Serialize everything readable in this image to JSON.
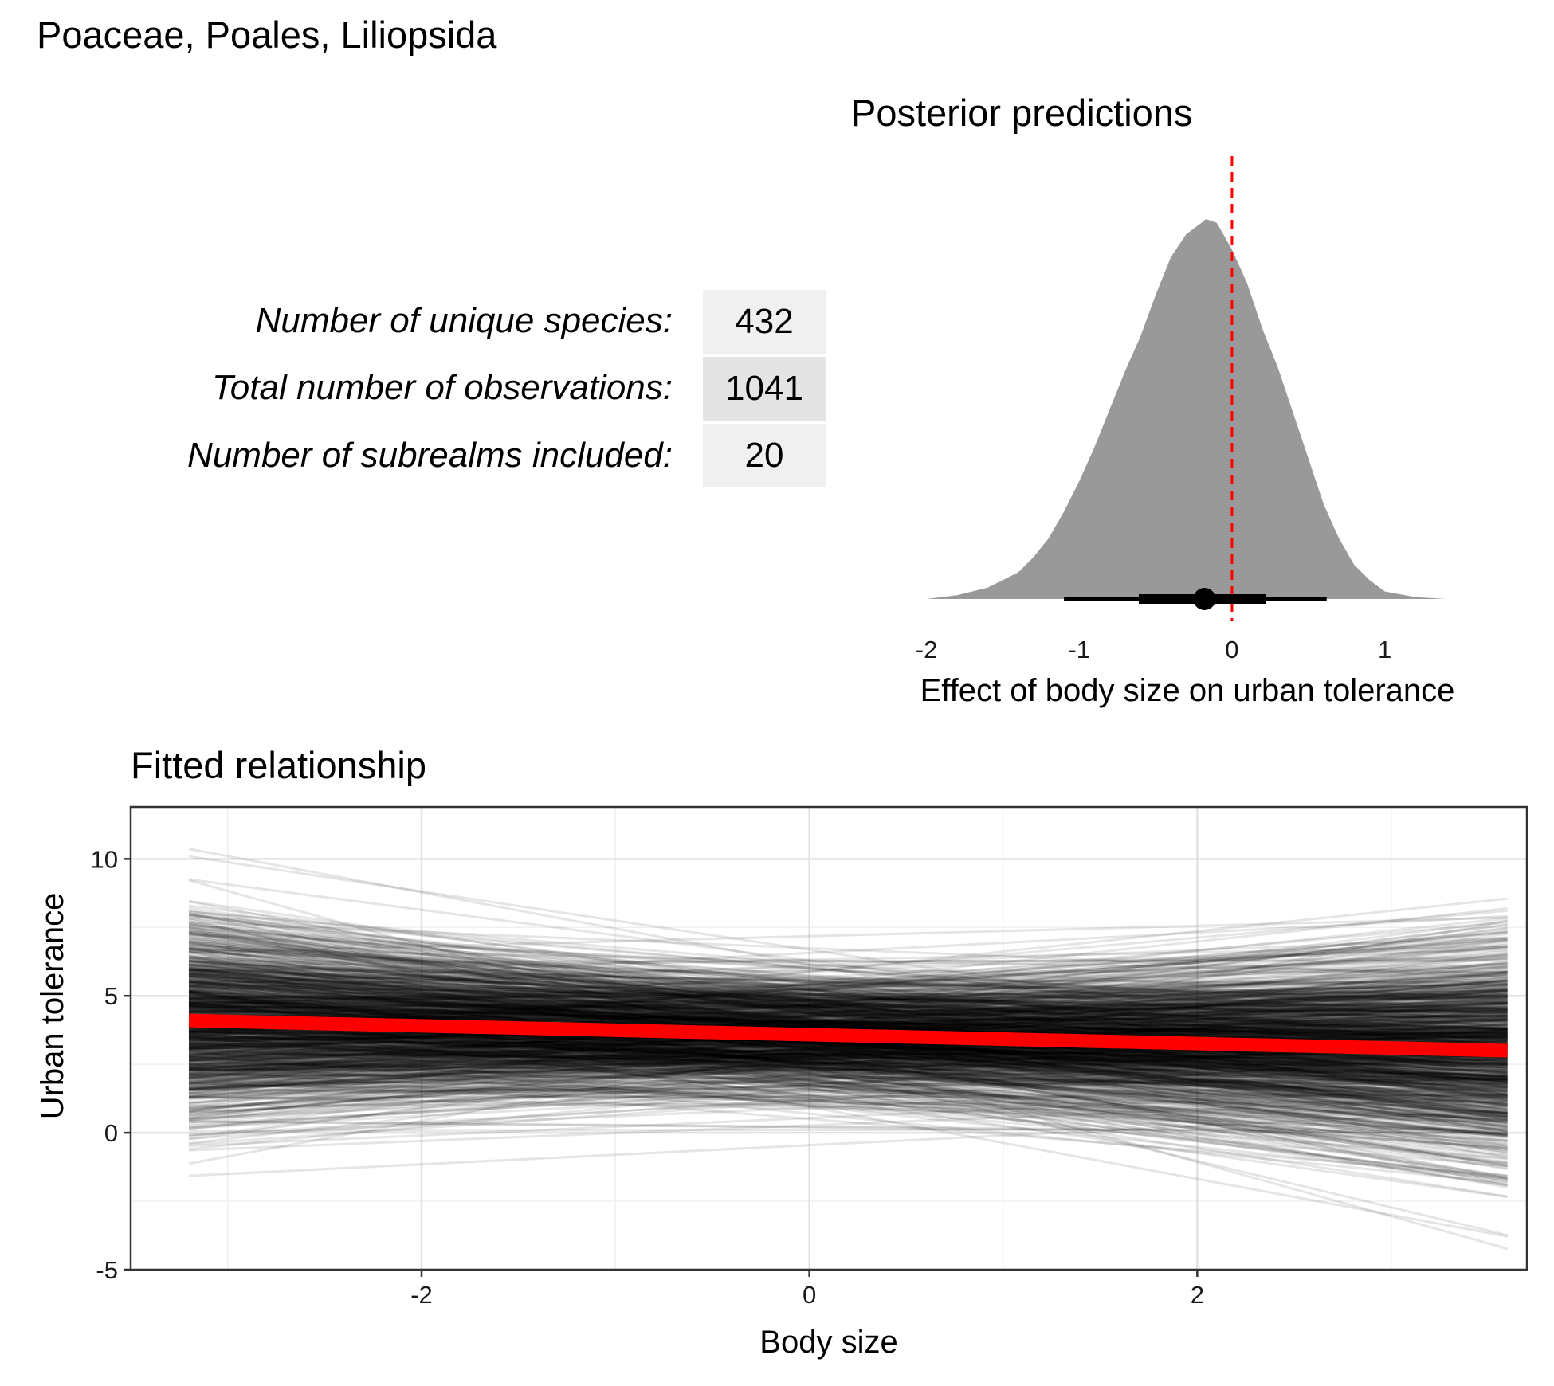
{
  "header": {
    "title": "Poaceae, Poales, Liliopsida"
  },
  "stats": [
    {
      "label": "Number of unique species:",
      "value": "432"
    },
    {
      "label": "Total number of observations:",
      "value": "1041"
    },
    {
      "label": "Number of subrealms included:",
      "value": "20"
    }
  ],
  "colors": {
    "cell_light": "#f0f0f0",
    "cell_dark": "#e4e4e4",
    "density_fill": "#999999",
    "reference_line": "#ff0000",
    "fit_line": "#ff0000",
    "draws": "#000000"
  },
  "chart_data": [
    {
      "type": "area",
      "title": "Posterior predictions",
      "xlabel": "Effect of body size on urban tolerance",
      "ylabel": "",
      "xlim": [
        -2.05,
        1.43
      ],
      "x_ticks": [
        "-2",
        "-1",
        "0",
        "1"
      ],
      "reference_line": {
        "x": 0,
        "style": "dashed",
        "color": "#ff0000"
      },
      "density": {
        "x": [
          -2.0,
          -1.8,
          -1.6,
          -1.4,
          -1.3,
          -1.2,
          -1.1,
          -1.0,
          -0.9,
          -0.8,
          -0.7,
          -0.6,
          -0.5,
          -0.4,
          -0.3,
          -0.2,
          -0.17,
          -0.1,
          0.0,
          0.1,
          0.2,
          0.3,
          0.4,
          0.5,
          0.6,
          0.7,
          0.8,
          0.9,
          1.0,
          1.2,
          1.4
        ],
        "y": [
          0.0,
          0.01,
          0.03,
          0.07,
          0.11,
          0.16,
          0.23,
          0.31,
          0.4,
          0.5,
          0.6,
          0.69,
          0.8,
          0.9,
          0.96,
          0.99,
          1.0,
          0.99,
          0.92,
          0.83,
          0.71,
          0.61,
          0.49,
          0.37,
          0.25,
          0.16,
          0.09,
          0.05,
          0.02,
          0.005,
          0.0
        ]
      },
      "point_estimate": -0.18,
      "interval_inner": [
        -0.61,
        0.22
      ],
      "interval_outer": [
        -1.1,
        0.62
      ]
    },
    {
      "type": "line",
      "title": "Fitted relationship",
      "xlabel": "Body size",
      "ylabel": "Urban tolerance",
      "xlim": [
        -3.5,
        3.7
      ],
      "ylim": [
        -5.0,
        11.9
      ],
      "x_ticks": [
        "-2",
        "0",
        "2"
      ],
      "y_ticks": [
        "-5",
        "0",
        "5",
        "10"
      ],
      "x_range": [
        -3.2,
        3.6
      ],
      "grid": true,
      "fitted_line": {
        "x": [
          -3.2,
          3.6
        ],
        "y": [
          4.1,
          3.0
        ]
      },
      "posterior_draws": {
        "count": 1000,
        "intercept_mean": 3.55,
        "intercept_sd": 1.15,
        "slope_mean": -0.17,
        "slope_sd": 0.45
      }
    }
  ]
}
